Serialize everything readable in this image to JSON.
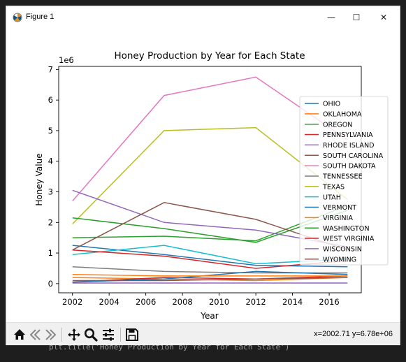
{
  "window": {
    "title": "Figure 1",
    "minimize_glyph": "—",
    "maximize_glyph": "☐",
    "close_glyph": "✕"
  },
  "toolbar": {
    "buttons": [
      "home-icon",
      "back-icon",
      "forward-icon",
      "pan-icon",
      "zoom-icon",
      "configure-icon",
      "save-icon"
    ],
    "coords_readout": "x=2002.71 y=6.78e+06"
  },
  "code_strip": {
    "text": "plt.title('Honey Production by Year for Each State')"
  },
  "chart_data": {
    "type": "line",
    "title": "Honey Production by Year for Each State",
    "xlabel": "Year",
    "ylabel": "Honey Value",
    "y_offset_label": "1e6",
    "xlim": [
      2001.25,
      2017.75
    ],
    "ylim": [
      -0.3,
      7.1
    ],
    "xticks": [
      2002,
      2004,
      2006,
      2008,
      2010,
      2012,
      2014,
      2016
    ],
    "yticks": [
      0,
      1,
      2,
      3,
      4,
      5,
      6,
      7
    ],
    "x": [
      2002,
      2007,
      2012,
      2017
    ],
    "legend_position": "right",
    "series": [
      {
        "name": "OHIO",
        "color": "#1f77b4",
        "values": [
          1.25,
          0.95,
          0.6,
          0.55
        ]
      },
      {
        "name": "OKLAHOMA",
        "color": "#ff7f0e",
        "values": [
          0.2,
          0.15,
          0.1,
          0.2
        ]
      },
      {
        "name": "OREGON",
        "color": "#2ca02c",
        "values": [
          1.5,
          1.55,
          1.4,
          2.55
        ]
      },
      {
        "name": "PENNSYLVANIA",
        "color": "#d62728",
        "values": [
          0.05,
          0.2,
          0.15,
          0.25
        ]
      },
      {
        "name": "RHODE ISLAND",
        "color": "#9467bd",
        "values": [
          0.02,
          0.02,
          0.02,
          0.02
        ]
      },
      {
        "name": "SOUTH CAROLINA",
        "color": "#8c564b",
        "values": [
          0.1,
          0.1,
          0.15,
          0.2
        ]
      },
      {
        "name": "SOUTH DAKOTA",
        "color": "#e377c2",
        "values": [
          2.7,
          6.15,
          6.75,
          4.7
        ]
      },
      {
        "name": "TENNESSEE",
        "color": "#7f7f7f",
        "values": [
          0.55,
          0.4,
          0.35,
          0.35
        ]
      },
      {
        "name": "TEXAS",
        "color": "#bcbd22",
        "values": [
          1.95,
          5.0,
          5.1,
          2.75
        ]
      },
      {
        "name": "UTAH",
        "color": "#17becf",
        "values": [
          0.95,
          1.25,
          0.65,
          0.8
        ]
      },
      {
        "name": "VERMONT",
        "color": "#1f77b4",
        "values": [
          0.05,
          0.15,
          0.4,
          0.3
        ]
      },
      {
        "name": "VIRGINIA",
        "color": "#ff7f0e",
        "values": [
          0.3,
          0.25,
          0.25,
          0.25
        ]
      },
      {
        "name": "WASHINGTON",
        "color": "#2ca02c",
        "values": [
          2.15,
          1.8,
          1.35,
          2.4
        ]
      },
      {
        "name": "WEST VIRGINIA",
        "color": "#d62728",
        "values": [
          1.1,
          0.9,
          0.5,
          0.75
        ]
      },
      {
        "name": "WISCONSIN",
        "color": "#9467bd",
        "values": [
          3.05,
          2.0,
          1.75,
          1.2
        ]
      },
      {
        "name": "WYOMING",
        "color": "#8c564b",
        "values": [
          1.1,
          2.65,
          2.1,
          1.1
        ]
      }
    ]
  }
}
